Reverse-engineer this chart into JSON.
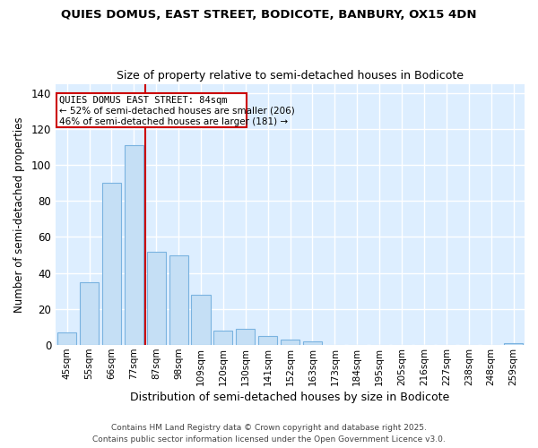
{
  "title1": "QUIES DOMUS, EAST STREET, BODICOTE, BANBURY, OX15 4DN",
  "title2": "Size of property relative to semi-detached houses in Bodicote",
  "xlabel": "Distribution of semi-detached houses by size in Bodicote",
  "ylabel": "Number of semi-detached properties",
  "bar_color": "#c5dff5",
  "bar_edge_color": "#7ab3e0",
  "background_color": "#ddeeff",
  "grid_color": "#ffffff",
  "bins": [
    "45sqm",
    "55sqm",
    "66sqm",
    "77sqm",
    "87sqm",
    "98sqm",
    "109sqm",
    "120sqm",
    "130sqm",
    "141sqm",
    "152sqm",
    "163sqm",
    "173sqm",
    "184sqm",
    "195sqm",
    "205sqm",
    "216sqm",
    "227sqm",
    "238sqm",
    "248sqm",
    "259sqm"
  ],
  "values": [
    7,
    35,
    90,
    111,
    52,
    50,
    28,
    8,
    9,
    5,
    3,
    2,
    0,
    0,
    0,
    0,
    0,
    0,
    0,
    0,
    1
  ],
  "red_line_bin_index": 4,
  "annotation_title": "QUIES DOMUS EAST STREET: 84sqm",
  "annotation_line1": "← 52% of semi-detached houses are smaller (206)",
  "annotation_line2": "46% of semi-detached houses are larger (181) →",
  "annotation_box_color": "#ffffff",
  "annotation_box_edge": "#cc0000",
  "red_line_color": "#cc0000",
  "ylim": [
    0,
    145
  ],
  "yticks": [
    0,
    20,
    40,
    60,
    80,
    100,
    120,
    140
  ],
  "footer1": "Contains HM Land Registry data © Crown copyright and database right 2025.",
  "footer2": "Contains public sector information licensed under the Open Government Licence v3.0."
}
